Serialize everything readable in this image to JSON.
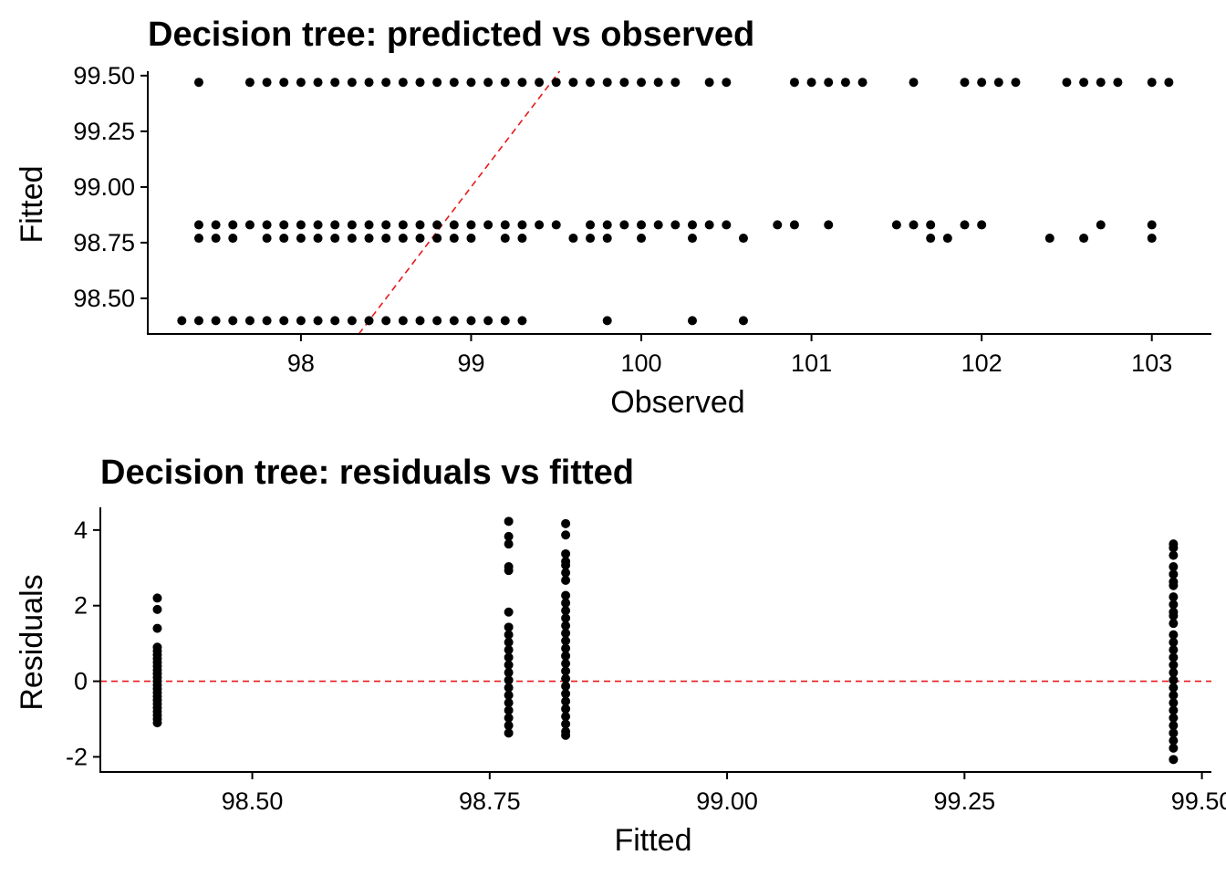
{
  "chart_data": [
    {
      "type": "scatter",
      "title": "Decision tree: predicted vs observed",
      "xlabel": "Observed",
      "ylabel": "Fitted",
      "xlim": [
        97.1,
        103.35
      ],
      "ylim": [
        98.34,
        99.52
      ],
      "x_ticks": [
        98,
        99,
        100,
        101,
        102,
        103
      ],
      "x_tick_labels": [
        "98",
        "99",
        "100",
        "101",
        "102",
        "103"
      ],
      "y_ticks": [
        98.5,
        98.75,
        99.0,
        99.25,
        99.5
      ],
      "y_tick_labels": [
        "98.50",
        "98.75",
        "99.00",
        "99.25",
        "99.50"
      ],
      "reference_line": {
        "type": "identity",
        "slope": 1,
        "intercept": 0,
        "color": "#e8181a",
        "style": "dashed"
      },
      "grid": false,
      "points_by_level": [
        {
          "y": 99.47,
          "x": [
            97.4,
            97.7,
            97.8,
            97.9,
            98.0,
            98.1,
            98.2,
            98.3,
            98.4,
            98.5,
            98.6,
            98.7,
            98.8,
            98.9,
            99.0,
            99.1,
            99.2,
            99.3,
            99.4,
            99.5,
            99.6,
            99.7,
            99.8,
            99.9,
            100.0,
            100.1,
            100.2,
            100.4,
            100.5,
            100.9,
            101.0,
            101.1,
            101.2,
            101.3,
            101.6,
            101.9,
            102.0,
            102.1,
            102.2,
            102.5,
            102.6,
            102.7,
            102.8,
            103.0,
            103.1
          ]
        },
        {
          "y": 98.83,
          "x": [
            97.4,
            97.5,
            97.6,
            97.7,
            97.8,
            97.9,
            98.0,
            98.1,
            98.2,
            98.3,
            98.4,
            98.5,
            98.6,
            98.7,
            98.8,
            98.9,
            99.0,
            99.1,
            99.2,
            99.3,
            99.4,
            99.5,
            99.7,
            99.8,
            99.9,
            100.0,
            100.1,
            100.2,
            100.3,
            100.4,
            100.5,
            100.8,
            100.9,
            101.1,
            101.5,
            101.6,
            101.7,
            101.9,
            102.0,
            102.7,
            103.0
          ]
        },
        {
          "y": 98.77,
          "x": [
            97.4,
            97.5,
            97.6,
            97.8,
            97.9,
            98.0,
            98.1,
            98.2,
            98.3,
            98.4,
            98.5,
            98.6,
            98.7,
            98.8,
            98.9,
            99.0,
            99.2,
            99.3,
            99.6,
            99.7,
            99.8,
            100.0,
            100.3,
            100.6,
            101.7,
            101.8,
            102.4,
            102.6,
            103.0
          ]
        },
        {
          "y": 98.4,
          "x": [
            97.3,
            97.4,
            97.5,
            97.6,
            97.7,
            97.8,
            97.9,
            98.0,
            98.1,
            98.2,
            98.3,
            98.4,
            98.5,
            98.6,
            98.7,
            98.8,
            98.9,
            99.0,
            99.1,
            99.2,
            99.3,
            99.8,
            100.3,
            100.6
          ]
        }
      ]
    },
    {
      "type": "scatter",
      "title": "Decision tree: residuals vs fitted",
      "xlabel": "Fitted",
      "ylabel": "Residuals",
      "xlim": [
        98.34,
        99.51
      ],
      "ylim": [
        -2.4,
        4.6
      ],
      "x_ticks": [
        98.5,
        98.75,
        99.0,
        99.25,
        99.5
      ],
      "x_tick_labels": [
        "98.50",
        "98.75",
        "99.00",
        "99.25",
        "99.50"
      ],
      "y_ticks": [
        -2,
        0,
        2,
        4
      ],
      "y_tick_labels": [
        "-2",
        "0",
        "2",
        "4"
      ],
      "reference_line": {
        "type": "horizontal",
        "y": 0,
        "color": "#e8181a",
        "style": "dashed"
      },
      "grid": false,
      "points_by_fitted": [
        {
          "x": 98.4,
          "y": [
            2.2,
            1.9,
            1.4,
            0.9,
            0.8,
            0.7,
            0.6,
            0.5,
            0.4,
            0.3,
            0.2,
            0.1,
            0.0,
            -0.1,
            -0.2,
            -0.3,
            -0.4,
            -0.5,
            -0.6,
            -0.7,
            -0.8,
            -0.9,
            -1.0,
            -1.1
          ]
        },
        {
          "x": 98.77,
          "y": [
            4.23,
            3.83,
            3.63,
            3.03,
            2.93,
            1.83,
            1.43,
            1.23,
            1.03,
            0.83,
            0.63,
            0.43,
            0.23,
            0.03,
            -0.17,
            -0.37,
            -0.57,
            -0.77,
            -0.97,
            -1.17,
            -1.37
          ]
        },
        {
          "x": 98.83,
          "y": [
            4.17,
            3.87,
            3.37,
            3.17,
            3.07,
            2.87,
            2.67,
            2.27,
            2.07,
            1.87,
            1.67,
            1.47,
            1.27,
            1.07,
            0.87,
            0.67,
            0.47,
            0.27,
            0.07,
            -0.13,
            -0.33,
            -0.53,
            -0.73,
            -0.93,
            -1.13,
            -1.33,
            -1.43
          ]
        },
        {
          "x": 99.47,
          "y": [
            3.63,
            3.53,
            3.33,
            3.03,
            2.83,
            2.63,
            2.53,
            2.23,
            2.03,
            1.83,
            1.73,
            1.53,
            1.23,
            1.03,
            0.83,
            0.63,
            0.43,
            0.23,
            0.03,
            -0.17,
            -0.37,
            -0.57,
            -0.77,
            -0.97,
            -1.17,
            -1.37,
            -1.57,
            -1.77,
            -2.07
          ]
        }
      ]
    }
  ]
}
